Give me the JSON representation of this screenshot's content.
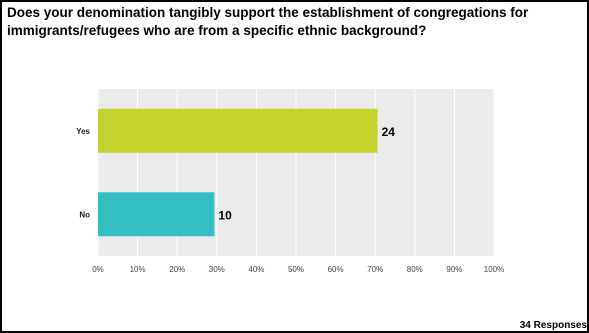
{
  "question": {
    "line1": "Does your denomination tangibly support the establishment of congregations for",
    "line2": "immigrants/refugees who are from a specific ethnic background?"
  },
  "responses_label": "34 Responses",
  "chart_data": {
    "type": "bar",
    "orientation": "horizontal",
    "categories": [
      "Yes",
      "No"
    ],
    "values": [
      24,
      10
    ],
    "percent": [
      70.6,
      29.4
    ],
    "total": 34,
    "colors": [
      "#c4d42c",
      "#33bfc2"
    ],
    "xlim": [
      0,
      100
    ],
    "xticks": [
      "0%",
      "10%",
      "20%",
      "30%",
      "40%",
      "50%",
      "60%",
      "70%",
      "80%",
      "90%",
      "100%"
    ],
    "grid": true
  }
}
